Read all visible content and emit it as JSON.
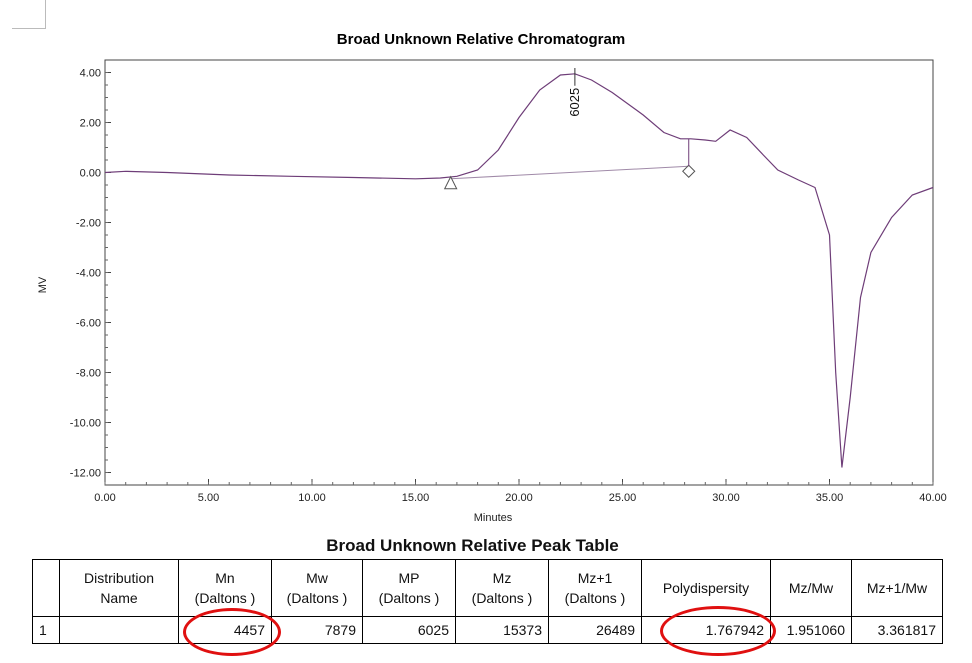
{
  "chart_data": {
    "type": "line",
    "title": "Broad Unknown Relative Chromatogram",
    "xlabel": "Minutes",
    "ylabel": "MV",
    "xlim": [
      0,
      40
    ],
    "ylim": [
      -12.5,
      4.5
    ],
    "x_ticks": [
      "0.00",
      "5.00",
      "10.00",
      "15.00",
      "20.00",
      "25.00",
      "30.00",
      "35.00",
      "40.00"
    ],
    "y_ticks": [
      "4.00",
      "2.00",
      "0.00",
      "-2.00",
      "-4.00",
      "-6.00",
      "-8.00",
      "-10.00",
      "-12.00"
    ],
    "series": [
      {
        "x": [
          0,
          1,
          3,
          6,
          9,
          12,
          15,
          16.2,
          17,
          18,
          19,
          20,
          21,
          22,
          22.7,
          23.5,
          24.5,
          26,
          27,
          27.8,
          28.3,
          29,
          29.5,
          30.2,
          31,
          31.8,
          32.5,
          33.5,
          34.3,
          35,
          35.3,
          35.6,
          36,
          36.5,
          37,
          38,
          39,
          40
        ],
        "y": [
          0.0,
          0.05,
          0.0,
          -0.1,
          -0.15,
          -0.2,
          -0.25,
          -0.22,
          -0.15,
          0.1,
          0.9,
          2.2,
          3.3,
          3.9,
          3.95,
          3.7,
          3.2,
          2.3,
          1.6,
          1.35,
          1.35,
          1.3,
          1.25,
          1.7,
          1.4,
          0.7,
          0.1,
          -0.3,
          -0.6,
          -2.5,
          -8.0,
          -11.8,
          -9.0,
          -5.0,
          -3.2,
          -1.8,
          -0.9,
          -0.6
        ]
      }
    ],
    "baseline": {
      "x": [
        16.7,
        28.2
      ],
      "y": [
        -0.25,
        0.25
      ]
    },
    "peak_markers": {
      "start_x": 16.7,
      "end_x": 28.2,
      "apex_x": 22.7,
      "apex_label": "6025"
    },
    "grid": false
  },
  "peak_table": {
    "title": "Broad Unknown Relative Peak Table",
    "headers": {
      "distribution_line1": "Distribution",
      "distribution_line2": "Name",
      "mn_line1": "Mn",
      "mn_line2": "(Daltons )",
      "mw_line1": "Mw",
      "mw_line2": "(Daltons )",
      "mp_line1": "MP",
      "mp_line2": "(Daltons )",
      "mz_line1": "Mz",
      "mz_line2": "(Daltons )",
      "mz1_line1": "Mz+1",
      "mz1_line2": "(Daltons )",
      "polydispersity": "Polydispersity",
      "mzmw": "Mz/Mw",
      "mz1mw": "Mz+1/Mw"
    },
    "row": {
      "index": "1",
      "name": "",
      "mn": "4457",
      "mw": "7879",
      "mp": "6025",
      "mz": "15373",
      "mz1": "26489",
      "polydispersity": "1.767942",
      "mzmw": "1.951060",
      "mz1mw": "3.361817"
    }
  },
  "colors": {
    "trace": "#6e3d78",
    "baseline": "#a08aa8",
    "highlight": "#e01010"
  }
}
